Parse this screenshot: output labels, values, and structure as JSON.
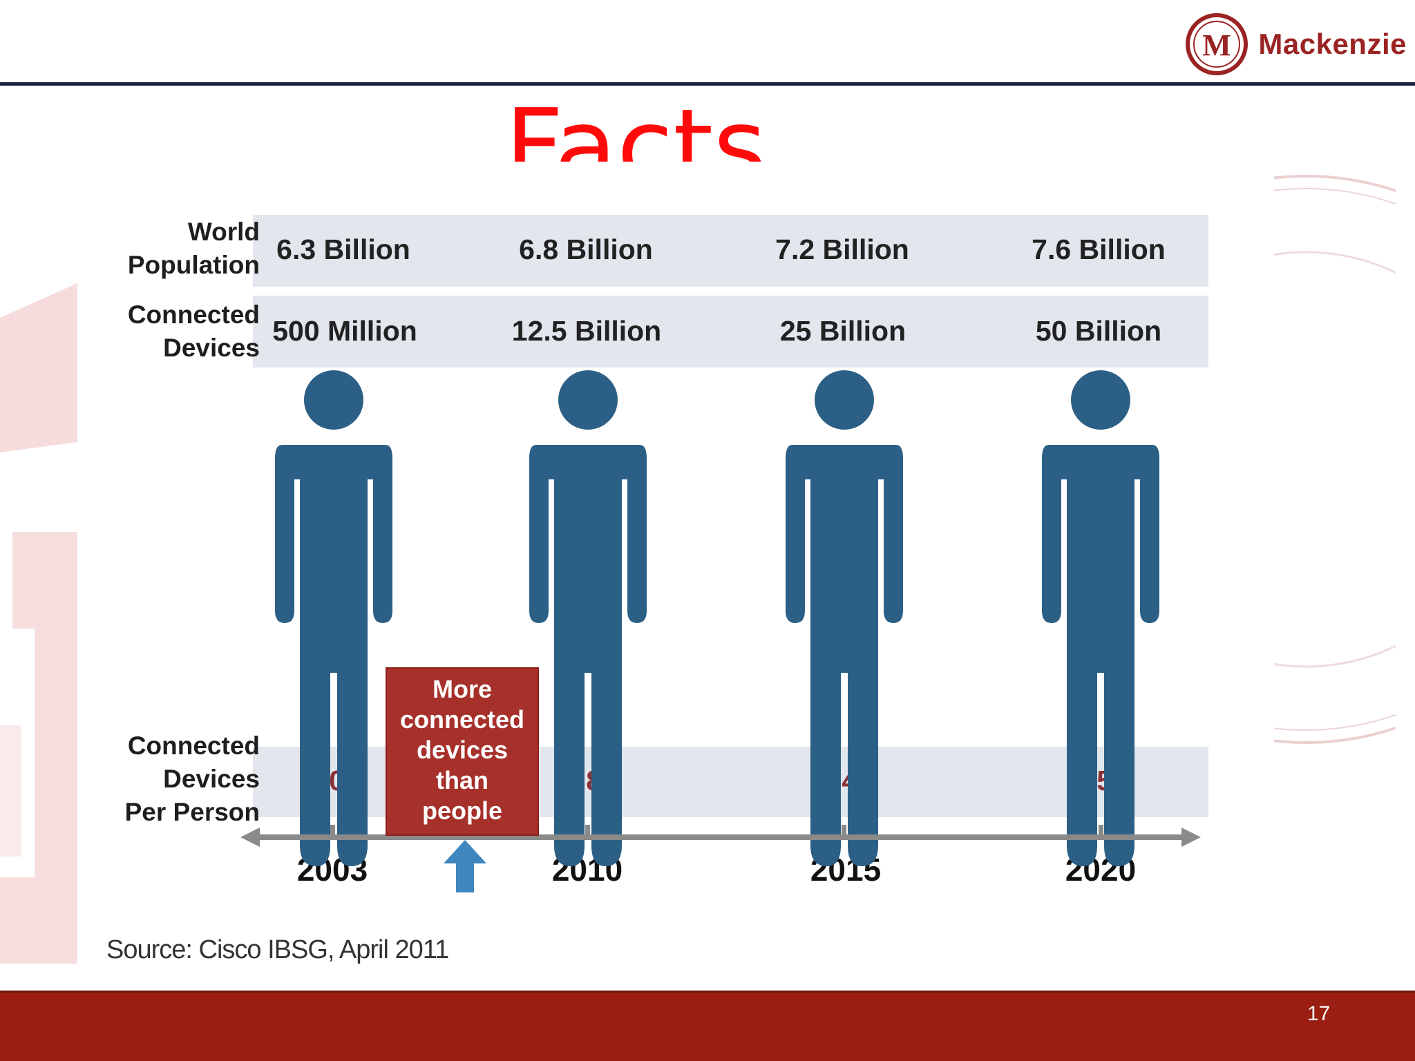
{
  "brand": {
    "logo_letter": "M",
    "name": "Mackenzie",
    "color": "#9b2323"
  },
  "title": "Facts",
  "rows": {
    "world_population_label": [
      "World",
      "Population"
    ],
    "connected_devices_label": [
      "Connected",
      "Devices"
    ],
    "per_person_label": [
      "Connected",
      "Devices",
      "Per Person"
    ]
  },
  "columns": [
    {
      "year": "2003",
      "world_population": "6.3 Billion",
      "connected_devices": "500 Million",
      "per_person": "0.08"
    },
    {
      "year": "2010",
      "world_population": "6.8 Billion",
      "connected_devices": "12.5 Billion",
      "per_person": "1.84"
    },
    {
      "year": "2015",
      "world_population": "7.2 Billion",
      "connected_devices": "25 Billion",
      "per_person": "3.47"
    },
    {
      "year": "2020",
      "world_population": "7.6 Billion",
      "connected_devices": "50 Billion",
      "per_person": "6.58"
    }
  ],
  "callout": [
    "More",
    "connected",
    "devices",
    "than",
    "people"
  ],
  "source": "Source: Cisco IBSG, April 2011",
  "slide_number": "17",
  "colors": {
    "title": "#ff0a0a",
    "figure": "#2c5f85",
    "band": "#e1e7ec",
    "callout": "#a6302a",
    "footer": "#9a1f12",
    "per_person_text": "#8a3138"
  },
  "icons": {
    "person": "person-figure-icon",
    "arrow": "up-arrow-icon"
  }
}
